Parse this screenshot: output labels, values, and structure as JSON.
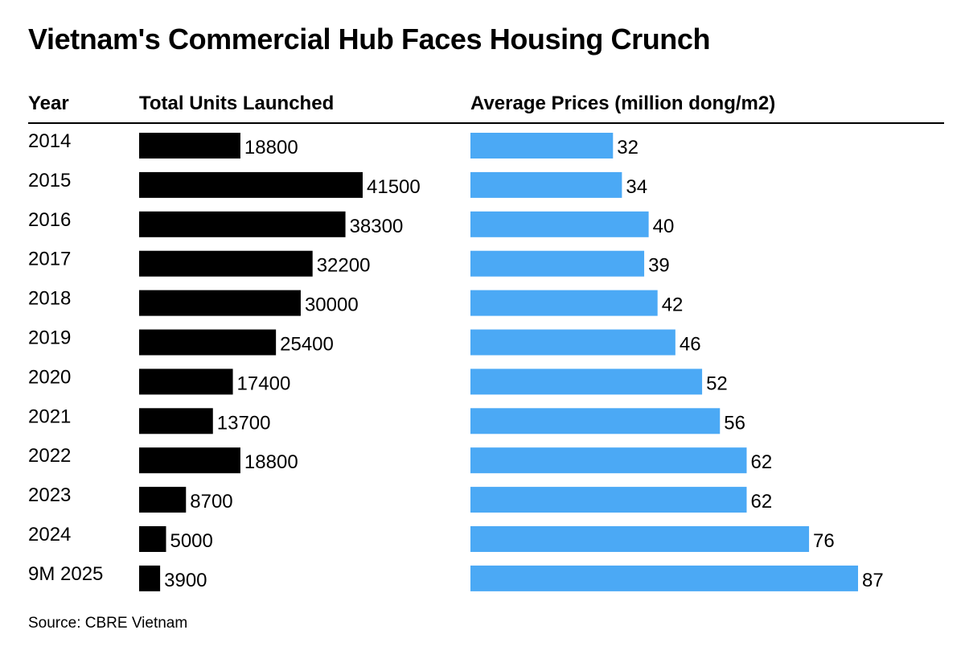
{
  "chart_data": {
    "type": "bar",
    "title": "Vietnam's Commercial Hub Faces Housing Crunch",
    "row_header": "Year",
    "categories": [
      "2014",
      "2015",
      "2016",
      "2017",
      "2018",
      "2019",
      "2020",
      "2021",
      "2022",
      "2023",
      "2024",
      "9M 2025"
    ],
    "series": [
      {
        "name": "Total Units Launched",
        "color": "#000000",
        "values": [
          18800,
          41500,
          38300,
          32200,
          30000,
          25400,
          17400,
          13700,
          18800,
          8700,
          5000,
          3900
        ]
      },
      {
        "name": "Average Prices (million dong/m2)",
        "color": "#4ba9f5",
        "values": [
          32,
          34,
          40,
          39,
          42,
          46,
          52,
          56,
          62,
          62,
          76,
          87
        ]
      }
    ],
    "orientation": "horizontal",
    "source": "Source: CBRE Vietnam"
  }
}
